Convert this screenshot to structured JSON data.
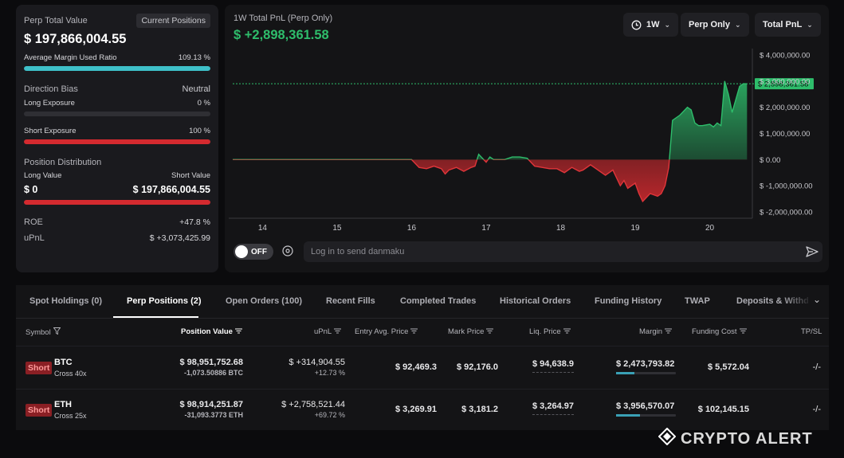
{
  "left": {
    "perp_total_label": "Perp Total Value",
    "current_positions_button": "Current Positions",
    "perp_total_value": "$ 197,866,004.55",
    "margin_ratio_label": "Average Margin Used Ratio",
    "margin_ratio_value": "109.13 %",
    "margin_ratio_fill": 1.0,
    "direction_bias_label": "Direction Bias",
    "direction_bias_value": "Neutral",
    "long_exposure_label": "Long Exposure",
    "long_exposure_value": "0 %",
    "long_exposure_fill": 0.0,
    "short_exposure_label": "Short Exposure",
    "short_exposure_value": "100 %",
    "short_exposure_fill": 1.0,
    "position_distribution_label": "Position Distribution",
    "long_value_label": "Long Value",
    "short_value_label": "Short Value",
    "long_value": "$ 0",
    "short_value": "$ 197,866,004.55",
    "roe_label": "ROE",
    "roe_value": "+47.8 %",
    "upnl_label": "uPnL",
    "upnl_value": "$ +3,073,425.99"
  },
  "chart": {
    "title": "1W Total PnL (Perp Only)",
    "value": "$ +2,898,361.58",
    "dropdowns": {
      "period": "1W",
      "scope": "Perp Only",
      "metric": "Total PnL"
    },
    "current_label": "$ 2,898,361.58"
  },
  "chart_data": {
    "type": "area",
    "title": "1W Total PnL (Perp Only)",
    "xlabel": "",
    "ylabel": "",
    "x_ticks": [
      "14",
      "15",
      "16",
      "17",
      "18",
      "19",
      "20"
    ],
    "y_ticks": [
      "$ 4,000,000.00",
      "$ 3,000,000.00",
      "$ 2,000,000.00",
      "$ 1,000,000.00",
      "$ 0.00",
      "$ -1,000,000.00",
      "$ -2,000,000.00"
    ],
    "y_tick_values": [
      4000000,
      3000000,
      2000000,
      1000000,
      0,
      -1000000,
      -2000000
    ],
    "ylim": [
      -2000000,
      4000000
    ],
    "xlim": [
      13.6,
      20.55
    ],
    "series": [
      {
        "name": "Total PnL",
        "x": [
          13.6,
          14.0,
          14.5,
          15.0,
          15.5,
          16.0,
          16.1,
          16.2,
          16.3,
          16.4,
          16.45,
          16.5,
          16.6,
          16.7,
          16.8,
          16.85,
          16.9,
          17.0,
          17.05,
          17.1,
          17.15,
          17.25,
          17.35,
          17.45,
          17.55,
          17.65,
          17.75,
          17.85,
          17.95,
          18.05,
          18.15,
          18.25,
          18.3,
          18.4,
          18.5,
          18.6,
          18.7,
          18.8,
          18.85,
          18.9,
          19.0,
          19.05,
          19.1,
          19.2,
          19.3,
          19.35,
          19.4,
          19.45,
          19.5,
          19.6,
          19.7,
          19.75,
          19.8,
          19.85,
          19.9,
          20.0,
          20.05,
          20.1,
          20.15,
          20.2,
          20.25,
          20.3,
          20.35,
          20.4,
          20.45,
          20.5
        ],
        "y": [
          0,
          0,
          0,
          0,
          0,
          0,
          -300000,
          -350000,
          -250000,
          -350000,
          -550000,
          -400000,
          -300000,
          -450000,
          -300000,
          -250000,
          200000,
          -100000,
          100000,
          0,
          0,
          0,
          100000,
          100000,
          50000,
          -250000,
          -300000,
          -350000,
          -350000,
          -500000,
          -300000,
          -450000,
          -400000,
          -200000,
          -400000,
          -600000,
          -400000,
          -1000000,
          -800000,
          -1100000,
          -900000,
          -1300000,
          -1600000,
          -1300000,
          -1400000,
          -1300000,
          -1000000,
          -300000,
          1500000,
          1700000,
          2000000,
          1900000,
          1400000,
          1300000,
          1300000,
          1350000,
          1250000,
          1400000,
          1300000,
          3000000,
          2500000,
          1800000,
          2300000,
          2800000,
          2900000,
          2898361
        ]
      }
    ],
    "current_value": 2898361.58,
    "grid": false
  },
  "danmaku": {
    "toggle_label": "OFF",
    "input_placeholder": "Log in to send danmaku"
  },
  "tabs": [
    "Spot Holdings (0)",
    "Perp Positions (2)",
    "Open Orders (100)",
    "Recent Fills",
    "Completed Trades",
    "Historical Orders",
    "Funding History",
    "TWAP",
    "Deposits & Withdrawals"
  ],
  "table": {
    "headers": [
      "Symbol",
      "Position Value",
      "uPnL",
      "Entry Avg. Price",
      "Mark Price",
      "Liq. Price",
      "Margin",
      "Funding Cost",
      "TP/SL"
    ],
    "rows": [
      {
        "side": "Short",
        "symbol": "BTC",
        "leverage": "Cross 40x",
        "position_value": "$ 98,951,752.68",
        "position_size": "-1,073.50886 BTC",
        "upnl": "$ +314,904.55",
        "upnl_pct": "+12.73 %",
        "entry_price": "$ 92,469.3",
        "mark_price": "$ 92,176.0",
        "liq_price": "$ 94,638.9",
        "margin": "$ 2,473,793.82",
        "margin_fill": 0.3,
        "funding_cost": "$ 5,572.04",
        "tpsl": "-/-"
      },
      {
        "side": "Short",
        "symbol": "ETH",
        "leverage": "Cross 25x",
        "position_value": "$ 98,914,251.87",
        "position_size": "-31,093.3773 ETH",
        "upnl": "$ +2,758,521.44",
        "upnl_pct": "+69.72 %",
        "entry_price": "$ 3,269.91",
        "mark_price": "$ 3,181.2",
        "liq_price": "$ 3,264.97",
        "margin": "$ 3,956,570.07",
        "margin_fill": 0.4,
        "funding_cost": "$ 102,145.15",
        "tpsl": "-/-"
      }
    ]
  },
  "watermark": "CRYPTO ALERT",
  "colors": {
    "green": "#2ebd6b",
    "red": "#e0353a",
    "teal": "#3ec0c9"
  }
}
